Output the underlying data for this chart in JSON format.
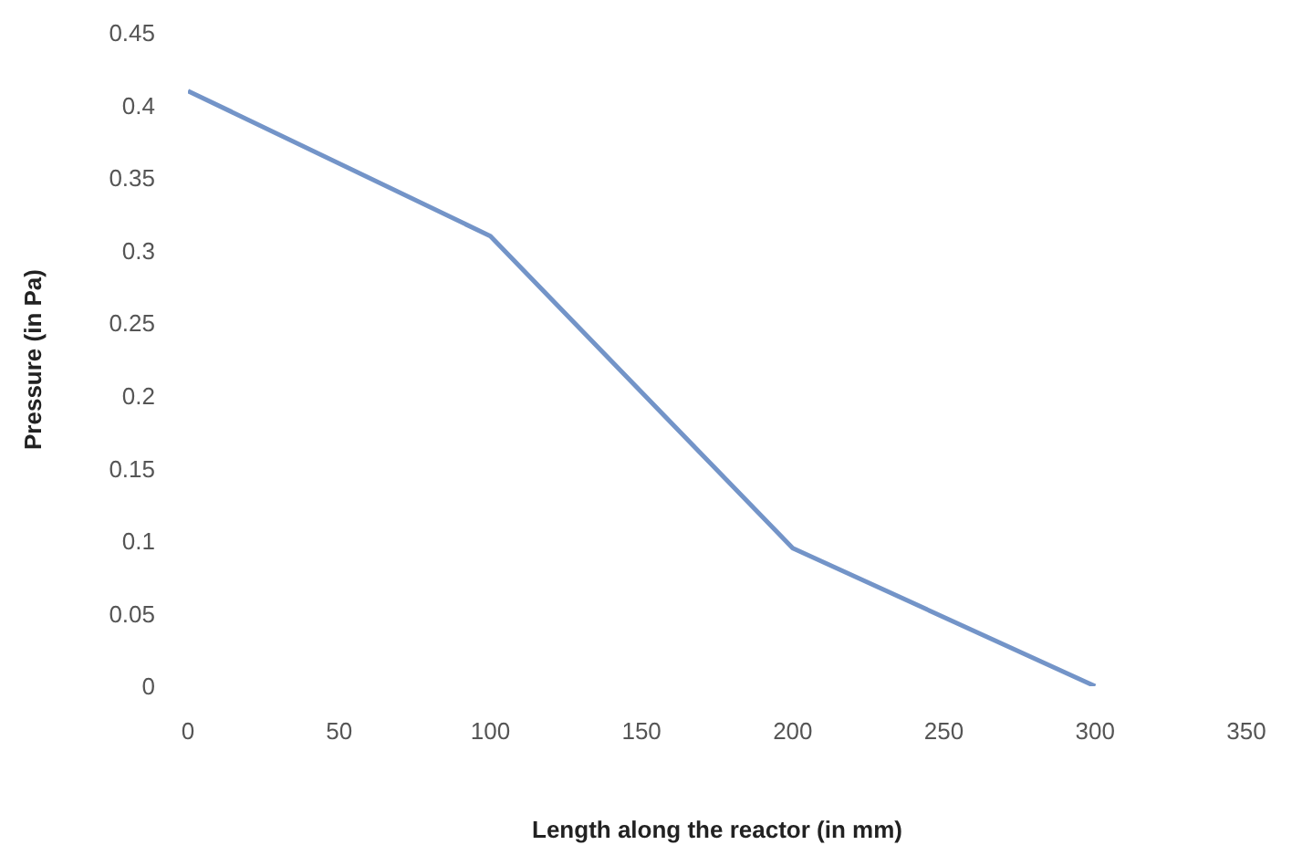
{
  "chart_data": {
    "type": "line",
    "xlabel": "Length along the reactor (in mm)",
    "ylabel": "Pressure (in Pa)",
    "x": [
      0,
      100,
      200,
      300
    ],
    "series": [
      {
        "color": "#7394c8",
        "values": [
          0.41,
          0.31,
          0.095,
          0
        ]
      }
    ],
    "xlim": [
      0,
      350
    ],
    "xticks": [
      0,
      50,
      100,
      150,
      200,
      250,
      300,
      350
    ],
    "ylim": [
      0,
      0.45
    ],
    "yticks": [
      0,
      0.05,
      0.1,
      0.15,
      0.2,
      0.25,
      0.3,
      0.35,
      0.4,
      0.45
    ],
    "grid": false,
    "legend": false,
    "marker": "none",
    "line_style": "solid"
  }
}
